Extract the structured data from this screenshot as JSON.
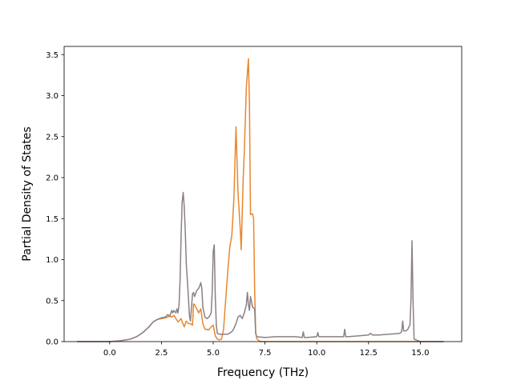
{
  "chart_data": {
    "type": "line",
    "xlabel": "Frequency (THz)",
    "ylabel": "Partial Density of States",
    "xlim": [
      -2.2,
      17.0
    ],
    "ylim": [
      0.0,
      3.6
    ],
    "xticks": [
      0.0,
      2.5,
      5.0,
      7.5,
      10.0,
      12.5,
      15.0
    ],
    "xtick_labels": [
      "0.0",
      "2.5",
      "5.0",
      "7.5",
      "10.0",
      "12.5",
      "15.0"
    ],
    "yticks": [
      0.0,
      0.5,
      1.0,
      1.5,
      2.0,
      2.5,
      3.0,
      3.5
    ],
    "ytick_labels": [
      "0.0",
      "0.5",
      "1.0",
      "1.5",
      "2.0",
      "2.5",
      "3.0",
      "3.5"
    ],
    "grid": false,
    "series": [
      {
        "color": "#e8872e",
        "x": [
          -1.55,
          -0.5,
          0.0,
          0.5,
          1.0,
          1.3,
          1.6,
          1.9,
          2.1,
          2.3,
          2.5,
          2.7,
          2.9,
          3.0,
          3.1,
          3.2,
          3.3,
          3.45,
          3.5,
          3.6,
          3.7,
          3.8,
          3.9,
          4.0,
          4.05,
          4.1,
          4.2,
          4.3,
          4.4,
          4.5,
          4.6,
          4.7,
          4.75,
          4.8,
          4.9,
          5.0,
          5.1,
          5.2,
          5.3,
          5.4,
          5.5,
          5.6,
          5.7,
          5.8,
          5.9,
          6.0,
          6.1,
          6.2,
          6.3,
          6.35,
          6.4,
          6.45,
          6.5,
          6.6,
          6.7,
          6.75,
          6.8,
          6.82,
          6.9,
          6.95,
          7.0,
          7.05,
          7.1,
          7.2,
          7.3,
          7.5,
          8.0,
          9.0,
          10.0,
          12.0,
          14.0,
          14.5,
          14.6,
          14.65,
          14.7,
          16.1
        ],
        "y": [
          0.0,
          0.0,
          0.0,
          0.01,
          0.03,
          0.06,
          0.11,
          0.18,
          0.24,
          0.27,
          0.28,
          0.29,
          0.31,
          0.3,
          0.32,
          0.28,
          0.24,
          0.28,
          0.24,
          0.18,
          0.25,
          0.22,
          0.22,
          0.2,
          0.46,
          0.45,
          0.4,
          0.35,
          0.4,
          0.22,
          0.15,
          0.15,
          0.14,
          0.15,
          0.18,
          0.2,
          0.07,
          0.03,
          0.02,
          0.03,
          0.15,
          0.5,
          0.85,
          1.15,
          1.3,
          1.75,
          2.62,
          1.8,
          1.4,
          1.12,
          1.55,
          2.0,
          2.3,
          3.1,
          3.45,
          2.9,
          1.55,
          1.55,
          1.56,
          1.5,
          0.65,
          0.12,
          0.04,
          0.01,
          0.0,
          0.0,
          0.0,
          0.0,
          0.0,
          0.0,
          0.0,
          0.0,
          0.0,
          0.0,
          0.0,
          0.0
        ]
      },
      {
        "color": "#8c8085",
        "x": [
          -1.55,
          -0.5,
          0.0,
          0.5,
          1.0,
          1.3,
          1.6,
          1.9,
          2.1,
          2.3,
          2.5,
          2.7,
          2.8,
          2.9,
          3.0,
          3.05,
          3.1,
          3.2,
          3.25,
          3.3,
          3.35,
          3.4,
          3.45,
          3.5,
          3.55,
          3.6,
          3.65,
          3.7,
          3.8,
          3.85,
          3.9,
          4.0,
          4.05,
          4.1,
          4.2,
          4.3,
          4.35,
          4.4,
          4.45,
          4.5,
          4.6,
          4.7,
          4.8,
          4.9,
          4.95,
          5.0,
          5.05,
          5.1,
          5.15,
          5.2,
          5.3,
          5.5,
          5.7,
          5.9,
          6.0,
          6.1,
          6.2,
          6.3,
          6.4,
          6.5,
          6.6,
          6.65,
          6.7,
          6.75,
          6.8,
          6.9,
          7.0,
          7.05,
          7.1,
          7.5,
          8.0,
          9.0,
          9.3,
          9.35,
          9.4,
          9.5,
          10.0,
          10.05,
          10.1,
          10.5,
          11.0,
          11.3,
          11.35,
          11.4,
          11.5,
          12.0,
          12.5,
          12.6,
          12.7,
          13.0,
          13.5,
          14.0,
          14.1,
          14.15,
          14.2,
          14.3,
          14.4,
          14.45,
          14.5,
          14.55,
          14.6,
          14.65,
          14.7,
          15.0,
          16.1
        ],
        "y": [
          0.0,
          0.0,
          0.0,
          0.01,
          0.03,
          0.06,
          0.11,
          0.18,
          0.24,
          0.27,
          0.29,
          0.3,
          0.33,
          0.31,
          0.38,
          0.35,
          0.38,
          0.35,
          0.4,
          0.35,
          0.45,
          0.75,
          1.3,
          1.7,
          1.82,
          1.65,
          1.35,
          0.95,
          0.55,
          0.32,
          0.25,
          0.58,
          0.6,
          0.55,
          0.62,
          0.65,
          0.68,
          0.72,
          0.65,
          0.42,
          0.3,
          0.28,
          0.3,
          0.35,
          0.6,
          1.1,
          1.18,
          0.55,
          0.2,
          0.1,
          0.09,
          0.09,
          0.09,
          0.12,
          0.16,
          0.22,
          0.3,
          0.32,
          0.28,
          0.35,
          0.45,
          0.6,
          0.45,
          0.38,
          0.55,
          0.42,
          0.4,
          0.1,
          0.06,
          0.05,
          0.06,
          0.06,
          0.05,
          0.12,
          0.05,
          0.05,
          0.06,
          0.11,
          0.06,
          0.06,
          0.06,
          0.06,
          0.15,
          0.06,
          0.06,
          0.07,
          0.08,
          0.1,
          0.08,
          0.08,
          0.09,
          0.1,
          0.12,
          0.25,
          0.13,
          0.13,
          0.15,
          0.18,
          0.2,
          0.5,
          1.23,
          0.5,
          0.03,
          0.0,
          0.0
        ]
      }
    ]
  }
}
